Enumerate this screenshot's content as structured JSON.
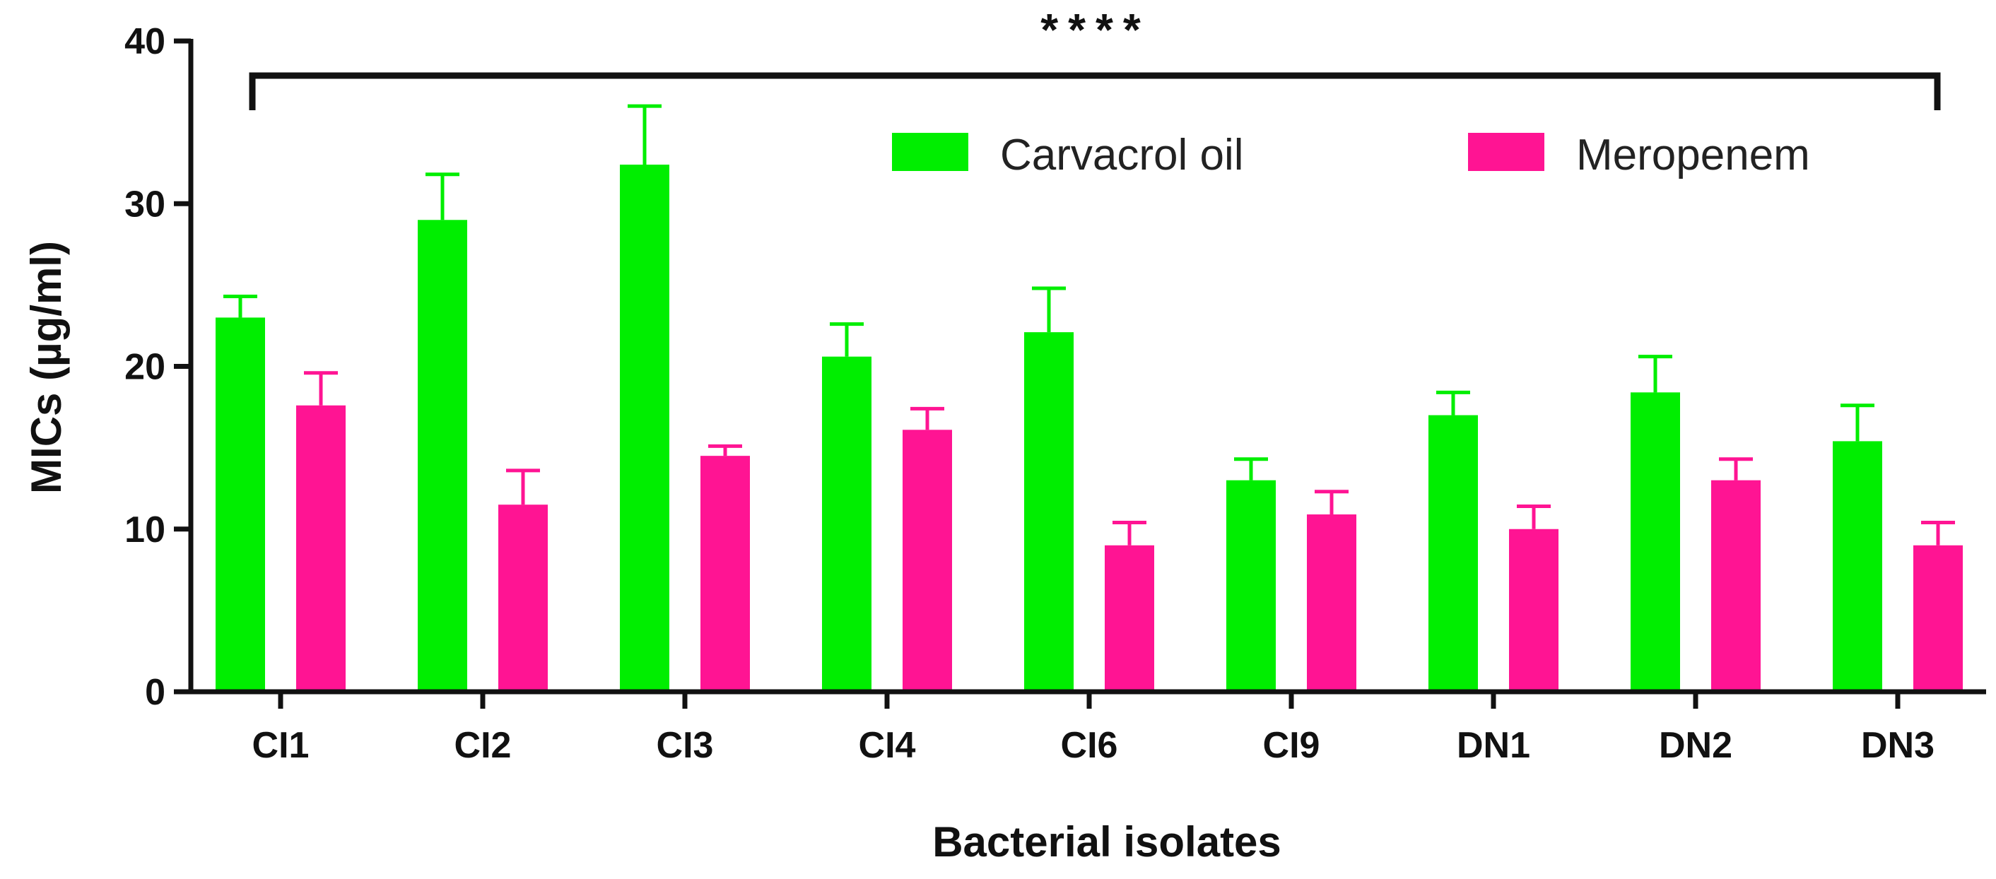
{
  "chart_data": {
    "type": "bar",
    "title": "",
    "xlabel": "Bacterial isolates",
    "ylabel": "MICs  (µg/ml)",
    "ylim": [
      0,
      40
    ],
    "yticks": [
      "0",
      "10",
      "20",
      "30",
      "40"
    ],
    "categories": [
      "CI1",
      "CI2",
      "CI3",
      "CI4",
      "CI6",
      "CI9",
      "DN1",
      "DN2",
      "DN3"
    ],
    "series": [
      {
        "name": "Carvacrol oil",
        "color": "#00ee00",
        "values": [
          23.0,
          29.0,
          32.4,
          20.6,
          22.1,
          13.0,
          17.0,
          18.4,
          15.4
        ],
        "errors": [
          1.3,
          2.8,
          3.6,
          2.0,
          2.7,
          1.3,
          1.4,
          2.2,
          2.2
        ]
      },
      {
        "name": "Meropenem",
        "color": "#ff1493",
        "values": [
          17.6,
          11.5,
          14.5,
          16.1,
          9.0,
          10.9,
          10.0,
          13.0,
          9.0
        ],
        "errors": [
          2.0,
          2.1,
          0.6,
          1.3,
          1.4,
          1.4,
          1.4,
          1.3,
          1.4
        ]
      }
    ],
    "significance": "****",
    "legend_position": "top-right"
  }
}
